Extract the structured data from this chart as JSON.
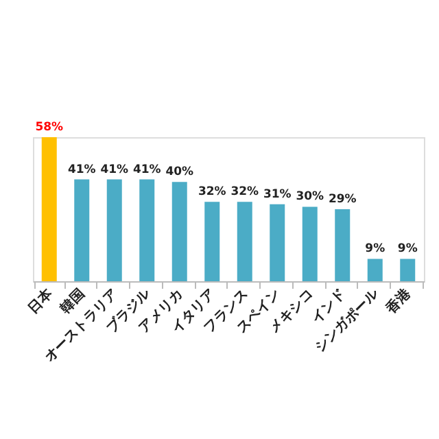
{
  "chart_data": {
    "type": "bar",
    "categories": [
      "日本",
      "韓国",
      "オーストラリア",
      "ブラジル",
      "アメリカ",
      "イタリア",
      "フランス",
      "スペイン",
      "メキシコ",
      "インド",
      "シンガポール",
      "香港"
    ],
    "values": [
      58,
      41,
      41,
      41,
      40,
      32,
      32,
      31,
      30,
      29,
      9,
      9
    ],
    "value_labels": [
      "58%",
      "41%",
      "41%",
      "41%",
      "40%",
      "32%",
      "32%",
      "31%",
      "30%",
      "29%",
      "9%",
      "9%"
    ],
    "colors": [
      "#ffc000",
      "#4bacc6",
      "#4bacc6",
      "#4bacc6",
      "#4bacc6",
      "#4bacc6",
      "#4bacc6",
      "#4bacc6",
      "#4bacc6",
      "#4bacc6",
      "#4bacc6",
      "#4bacc6"
    ],
    "grid": false
  }
}
